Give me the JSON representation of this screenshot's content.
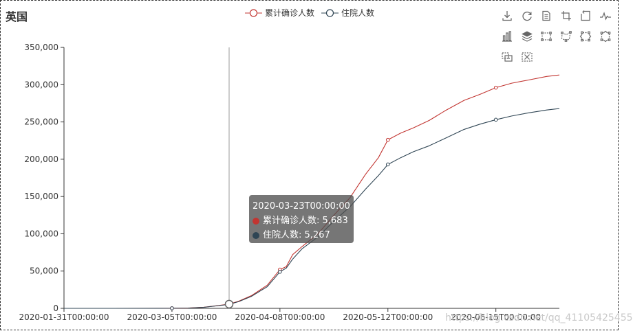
{
  "page": {
    "watermark": "https://blog.csdn.net/qq_41105425455"
  },
  "chart_data": {
    "type": "line",
    "title": "英国",
    "xlabel": "",
    "ylabel": "",
    "ylim": [
      0,
      350000
    ],
    "grid": false,
    "legend_position": "top-center",
    "x_range": [
      "2020-01-31",
      "2020-07-05"
    ],
    "x_ticks": [
      "2020-01-31T00:00:00",
      "2020-03-05T00:00:00",
      "2020-04-08T00:00:00",
      "2020-05-12T00:00:00",
      "2020-06-15T00:00:00"
    ],
    "y_ticks": [
      "0",
      "50,000",
      "100,000",
      "150,000",
      "200,000",
      "250,000",
      "300,000",
      "350,000"
    ],
    "series": [
      {
        "name": "累计确诊人数",
        "color": "#c23531",
        "points": [
          [
            "2020-01-31",
            2
          ],
          [
            "2020-02-15",
            9
          ],
          [
            "2020-03-01",
            36
          ],
          [
            "2020-03-05",
            115
          ],
          [
            "2020-03-10",
            380
          ],
          [
            "2020-03-15",
            1400
          ],
          [
            "2020-03-20",
            4000
          ],
          [
            "2020-03-23",
            5683
          ],
          [
            "2020-03-26",
            9500
          ],
          [
            "2020-03-30",
            17000
          ],
          [
            "2020-04-04",
            31000
          ],
          [
            "2020-04-08",
            52000
          ],
          [
            "2020-04-10",
            56000
          ],
          [
            "2020-04-12",
            72000
          ],
          [
            "2020-04-15",
            83000
          ],
          [
            "2020-04-20",
            100000
          ],
          [
            "2020-04-25",
            125000
          ],
          [
            "2020-04-30",
            148000
          ],
          [
            "2020-05-05",
            180000
          ],
          [
            "2020-05-09",
            202000
          ],
          [
            "2020-05-12",
            226000
          ],
          [
            "2020-05-16",
            235000
          ],
          [
            "2020-05-20",
            242000
          ],
          [
            "2020-05-25",
            252000
          ],
          [
            "2020-05-30",
            265000
          ],
          [
            "2020-06-05",
            279000
          ],
          [
            "2020-06-10",
            287000
          ],
          [
            "2020-06-15",
            296000
          ],
          [
            "2020-06-20",
            302000
          ],
          [
            "2020-06-25",
            306000
          ],
          [
            "2020-07-01",
            311000
          ],
          [
            "2020-07-05",
            313000
          ]
        ]
      },
      {
        "name": "住院人数",
        "color": "#2f4554",
        "points": [
          [
            "2020-01-31",
            2
          ],
          [
            "2020-02-15",
            8
          ],
          [
            "2020-03-01",
            34
          ],
          [
            "2020-03-05",
            110
          ],
          [
            "2020-03-10",
            350
          ],
          [
            "2020-03-15",
            1300
          ],
          [
            "2020-03-20",
            3800
          ],
          [
            "2020-03-23",
            5267
          ],
          [
            "2020-03-26",
            9000
          ],
          [
            "2020-03-30",
            16000
          ],
          [
            "2020-04-04",
            29000
          ],
          [
            "2020-04-08",
            49000
          ],
          [
            "2020-04-10",
            54000
          ],
          [
            "2020-04-12",
            66000
          ],
          [
            "2020-04-15",
            80000
          ],
          [
            "2020-04-20",
            96000
          ],
          [
            "2020-04-25",
            117000
          ],
          [
            "2020-04-30",
            136000
          ],
          [
            "2020-05-05",
            160000
          ],
          [
            "2020-05-09",
            178000
          ],
          [
            "2020-05-12",
            193000
          ],
          [
            "2020-05-16",
            202000
          ],
          [
            "2020-05-20",
            210000
          ],
          [
            "2020-05-25",
            218000
          ],
          [
            "2020-05-30",
            228000
          ],
          [
            "2020-06-05",
            240000
          ],
          [
            "2020-06-10",
            247000
          ],
          [
            "2020-06-15",
            253000
          ],
          [
            "2020-06-20",
            258000
          ],
          [
            "2020-06-25",
            262000
          ],
          [
            "2020-07-01",
            266000
          ],
          [
            "2020-07-05",
            268000
          ]
        ]
      }
    ],
    "markers": [
      {
        "series": 0,
        "x": "2020-03-05",
        "y": 115
      },
      {
        "series": 0,
        "x": "2020-04-08",
        "y": 52000
      },
      {
        "series": 0,
        "x": "2020-05-12",
        "y": 226000
      },
      {
        "series": 0,
        "x": "2020-06-15",
        "y": 296000
      },
      {
        "series": 1,
        "x": "2020-03-05",
        "y": 110
      },
      {
        "series": 1,
        "x": "2020-04-08",
        "y": 49000
      },
      {
        "series": 1,
        "x": "2020-05-12",
        "y": 193000
      },
      {
        "series": 1,
        "x": "2020-06-15",
        "y": 253000
      }
    ],
    "cursor": {
      "x": "2020-03-23",
      "y": 5683
    },
    "tooltip": {
      "header": "2020-03-23T00:00:00",
      "rows": [
        {
          "label": "累计确诊人数: 5,683",
          "color": "#c23531"
        },
        {
          "label": "住院人数: 5,267",
          "color": "#2f4554"
        }
      ]
    }
  },
  "toolbox": {
    "items": [
      {
        "name": "save-as-image-icon"
      },
      {
        "name": "restore-icon"
      },
      {
        "name": "data-view-icon"
      },
      {
        "name": "data-zoom-icon"
      },
      {
        "name": "zoom-back-icon"
      },
      {
        "name": "line-chart-icon"
      },
      {
        "name": "bar-chart-icon"
      },
      {
        "name": "stack-icon"
      },
      {
        "name": "brush-rect-icon"
      },
      {
        "name": "brush-polygon-icon"
      },
      {
        "name": "brush-line-x-icon"
      },
      {
        "name": "brush-line-y-icon"
      },
      {
        "name": "brush-keep-icon"
      },
      {
        "name": "brush-clear-icon"
      }
    ]
  }
}
